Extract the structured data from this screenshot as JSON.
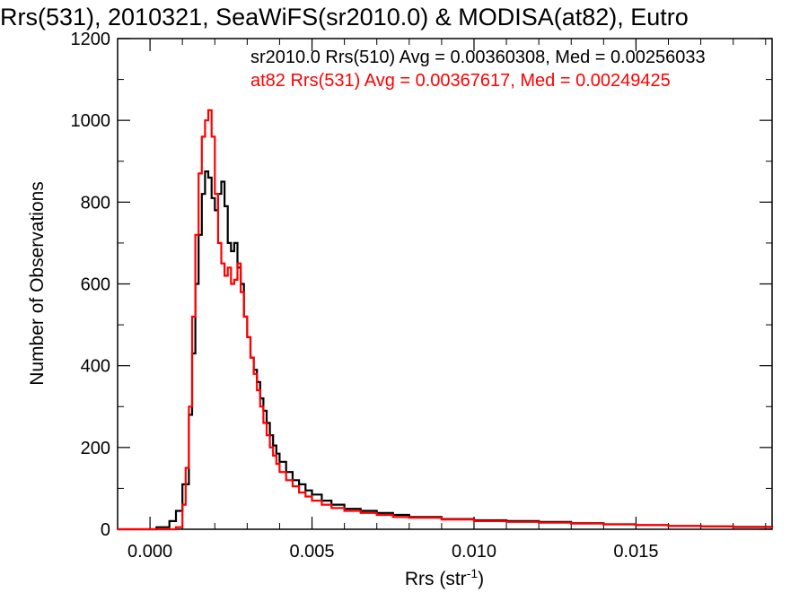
{
  "chart_data": {
    "type": "line",
    "title": "Rrs(531), 2010321, SeaWiFS(sr2010.0) & MODISA(at82), Eutro",
    "xlabel_main": "Rrs (str",
    "xlabel_sup": "-1",
    "xlabel_close": ")",
    "ylabel": "Number of Observations",
    "xlim": [
      -0.001,
      0.0192
    ],
    "ylim": [
      0,
      1200
    ],
    "xticks": [
      0.0,
      0.005,
      0.01,
      0.015
    ],
    "xtick_labels": [
      "0.000",
      "0.005",
      "0.010",
      "0.015"
    ],
    "yticks": [
      0,
      200,
      400,
      600,
      800,
      1000,
      1200
    ],
    "ytick_labels": [
      "0",
      "200",
      "400",
      "600",
      "800",
      "1000",
      "1200"
    ],
    "grid": false,
    "legend_placement": "top",
    "series": [
      {
        "name": "sr2010.0 Rrs(510) Avg = 0.00360308, Med = 0.00256033",
        "color": "#000000",
        "x": [
          -0.001,
          0.0002,
          0.0006,
          0.0008,
          0.001,
          0.0012,
          0.0013,
          0.0014,
          0.0015,
          0.0016,
          0.0017,
          0.0018,
          0.0019,
          0.002,
          0.0021,
          0.0022,
          0.0023,
          0.0024,
          0.0025,
          0.0026,
          0.0027,
          0.0028,
          0.0029,
          0.003,
          0.0031,
          0.0032,
          0.0033,
          0.0034,
          0.0035,
          0.0036,
          0.0037,
          0.0038,
          0.0039,
          0.004,
          0.0042,
          0.0044,
          0.0046,
          0.0048,
          0.005,
          0.0053,
          0.0056,
          0.006,
          0.0065,
          0.007,
          0.0075,
          0.008,
          0.009,
          0.01,
          0.011,
          0.012,
          0.013,
          0.014,
          0.015,
          0.016,
          0.017,
          0.018,
          0.0192
        ],
        "y": [
          0,
          5,
          20,
          45,
          110,
          280,
          430,
          600,
          720,
          820,
          875,
          860,
          810,
          780,
          820,
          850,
          790,
          700,
          680,
          700,
          640,
          600,
          520,
          470,
          420,
          390,
          360,
          320,
          290,
          260,
          230,
          205,
          185,
          165,
          140,
          120,
          110,
          95,
          85,
          70,
          60,
          50,
          45,
          40,
          35,
          30,
          25,
          22,
          20,
          18,
          15,
          12,
          10,
          8,
          7,
          6,
          5
        ]
      },
      {
        "name": "at82 Rrs(531) Avg = 0.00367617, Med = 0.00249425",
        "color": "#ff0000",
        "x": [
          -0.001,
          0.0004,
          0.0008,
          0.001,
          0.0011,
          0.0012,
          0.0013,
          0.0014,
          0.0015,
          0.0016,
          0.0017,
          0.0018,
          0.0019,
          0.002,
          0.0021,
          0.0022,
          0.0023,
          0.0024,
          0.0025,
          0.0026,
          0.0027,
          0.0028,
          0.0029,
          0.003,
          0.0031,
          0.0032,
          0.0033,
          0.0034,
          0.0035,
          0.0036,
          0.0037,
          0.0038,
          0.0039,
          0.004,
          0.0042,
          0.0044,
          0.0046,
          0.0048,
          0.005,
          0.0053,
          0.0056,
          0.006,
          0.0065,
          0.007,
          0.0075,
          0.008,
          0.009,
          0.01,
          0.011,
          0.012,
          0.013,
          0.014,
          0.015,
          0.016,
          0.017,
          0.018,
          0.0192
        ],
        "y": [
          0,
          0,
          5,
          60,
          150,
          300,
          520,
          720,
          870,
          960,
          1000,
          1025,
          960,
          820,
          700,
          650,
          620,
          640,
          600,
          610,
          650,
          580,
          520,
          470,
          420,
          380,
          340,
          300,
          260,
          230,
          200,
          180,
          160,
          140,
          120,
          105,
          90,
          80,
          70,
          60,
          52,
          45,
          40,
          35,
          30,
          28,
          24,
          20,
          18,
          16,
          14,
          12,
          10,
          8,
          7,
          5,
          4
        ]
      }
    ]
  }
}
